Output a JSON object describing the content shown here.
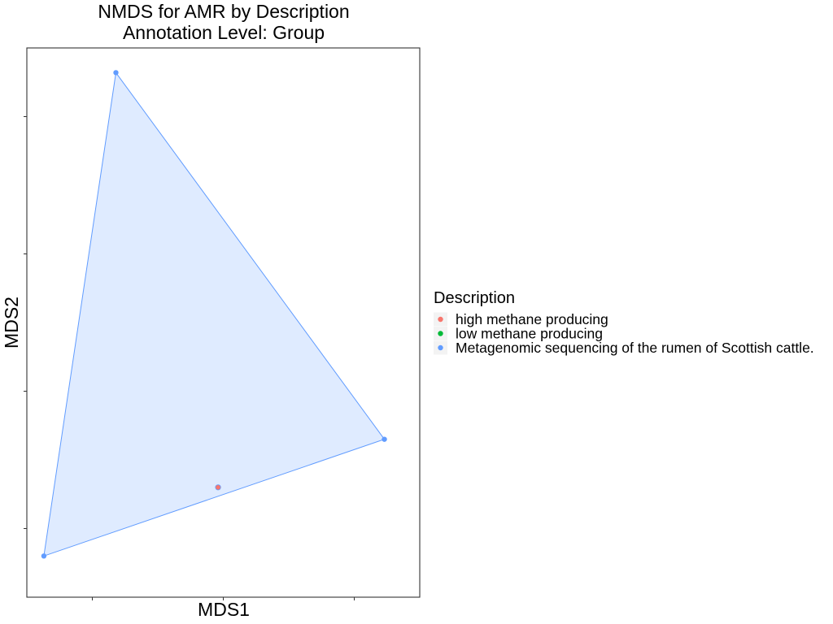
{
  "chart_data": {
    "type": "scatter",
    "title": "NMDS for AMR by Description",
    "subtitle": "Annotation Level: Group",
    "xlabel": "MDS1",
    "ylabel": "MDS2",
    "grid": false,
    "legend_position": "right",
    "legend": {
      "title": "Description",
      "entries": [
        {
          "label": "high methane producing",
          "color": "#F8766D"
        },
        {
          "label": "low methane producing",
          "color": "#00BA38"
        },
        {
          "label": "Metagenomic sequencing of the rumen of Scottish cattle.",
          "color": "#619CFF"
        }
      ]
    },
    "xlim": [
      -0.5,
      2.5
    ],
    "ylim": [
      -0.5,
      3.5
    ],
    "series": [
      {
        "name": "Metagenomic sequencing of the rumen of Scottish cattle.",
        "color": "#619CFF",
        "points": [
          [
            -0.37,
            -0.2
          ],
          [
            0.18,
            3.32
          ],
          [
            2.23,
            0.65
          ]
        ],
        "hull": true
      },
      {
        "name": "high methane producing",
        "color": "#F8766D",
        "points": [
          [
            0.96,
            0.3
          ]
        ],
        "hull": false
      },
      {
        "name": "low methane producing",
        "color": "#00BA38",
        "points": [],
        "hull": false
      }
    ],
    "hull_fill": "#619CFF",
    "hull_fill_opacity": 0.2
  }
}
